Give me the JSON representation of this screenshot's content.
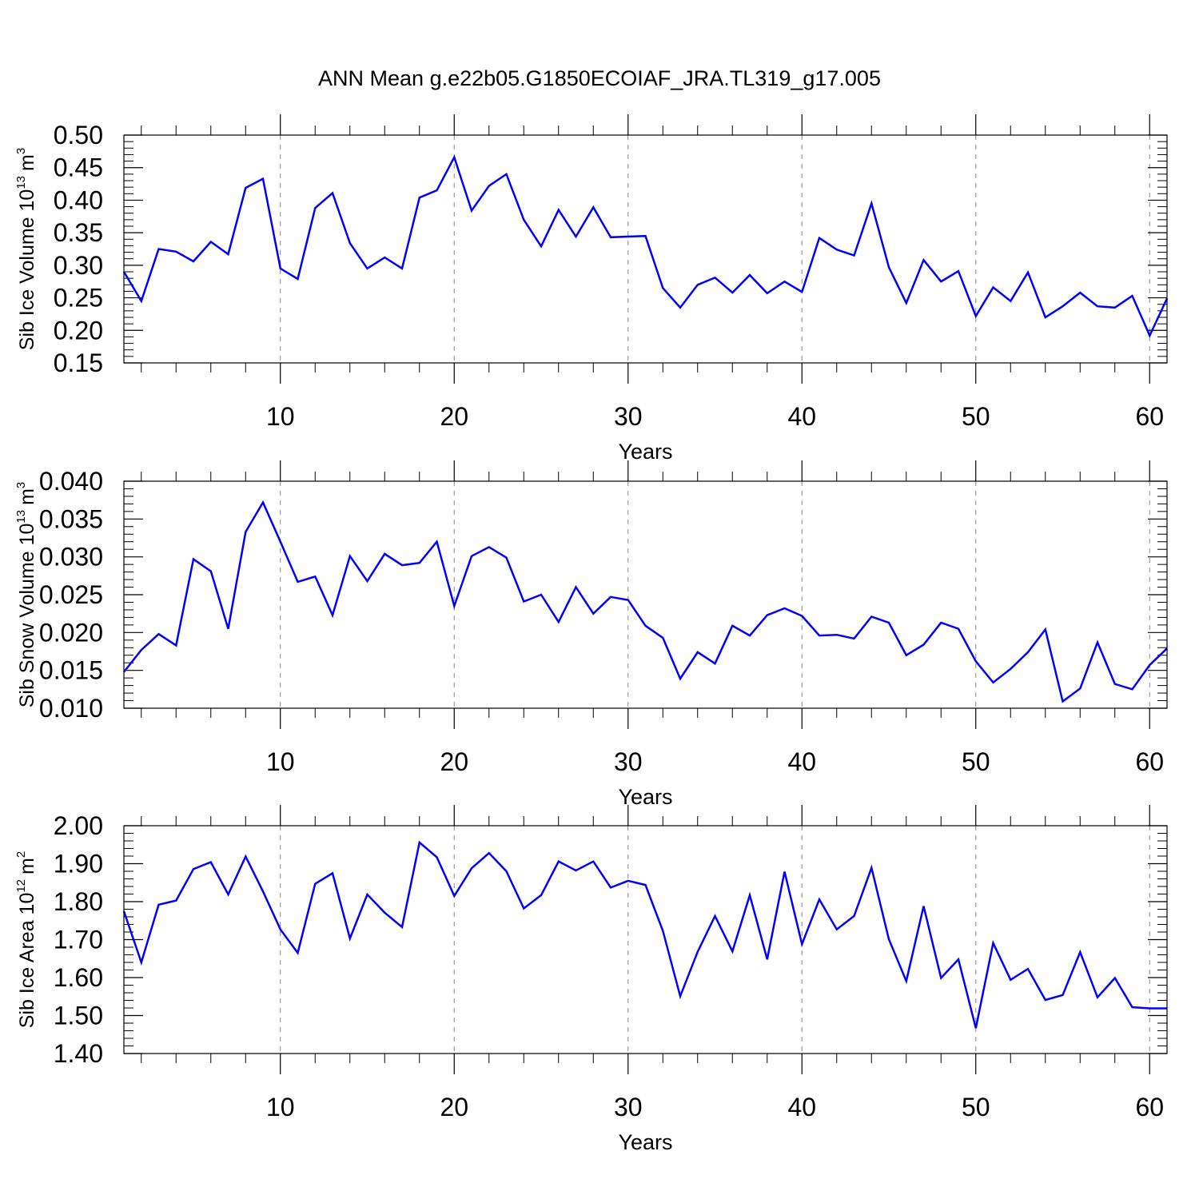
{
  "figure": {
    "title": "ANN Mean g.e22b05.G1850ECOIAF_JRA.TL319_g17.005",
    "line_color": "#0000ff",
    "axis_color": "#000000",
    "grid_color": "#888888"
  },
  "chart_data": [
    {
      "type": "line",
      "ylabel": "Sib Ice Volume 10",
      "ylabel_unit": "m",
      "ylabel_exp": "13",
      "ylabel_unit_exp": "3",
      "xlabel": "Years",
      "xlim": [
        1,
        61
      ],
      "ylim": [
        0.15,
        0.5
      ],
      "x_ticks": [
        "10",
        "20",
        "30",
        "40",
        "50",
        "60"
      ],
      "y_ticks": [
        "0.15",
        "0.20",
        "0.25",
        "0.30",
        "0.35",
        "0.40",
        "0.45",
        "0.50"
      ],
      "grid": "vertical dashed at major x ticks",
      "series": [
        {
          "x": [
            1,
            2,
            3,
            4,
            5,
            6,
            7,
            8,
            9,
            10,
            11,
            12,
            13,
            14,
            15,
            16,
            17,
            18,
            19,
            20,
            21,
            22,
            23,
            24,
            25,
            26,
            27,
            28,
            29,
            30,
            31,
            32,
            33,
            34,
            35,
            36,
            37,
            38,
            39,
            40,
            41,
            42,
            43,
            44,
            45,
            46,
            47,
            48,
            49,
            50,
            51,
            52,
            53,
            54,
            55,
            56,
            57,
            58,
            59,
            60,
            61
          ],
          "values": [
            0.29,
            0.245,
            0.325,
            0.321,
            0.306,
            0.336,
            0.317,
            0.419,
            0.433,
            0.295,
            0.279,
            0.388,
            0.411,
            0.334,
            0.295,
            0.312,
            0.295,
            0.404,
            0.415,
            0.466,
            0.384,
            0.422,
            0.44,
            0.37,
            0.329,
            0.385,
            0.344,
            0.389,
            0.343,
            0.344,
            0.345,
            0.265,
            0.235,
            0.27,
            0.281,
            0.258,
            0.285,
            0.257,
            0.275,
            0.259,
            0.342,
            0.324,
            0.315,
            0.395,
            0.297,
            0.242,
            0.308,
            0.275,
            0.291,
            0.222,
            0.266,
            0.245,
            0.289,
            0.22,
            0.237,
            0.258,
            0.237,
            0.235,
            0.253,
            0.192,
            0.249
          ]
        }
      ]
    },
    {
      "type": "line",
      "ylabel": "Sib Snow Volume 10",
      "ylabel_unit": "m",
      "ylabel_exp": "13",
      "ylabel_unit_exp": "3",
      "xlabel": "Years",
      "xlim": [
        1,
        61
      ],
      "ylim": [
        0.01,
        0.04
      ],
      "x_ticks": [
        "10",
        "20",
        "30",
        "40",
        "50",
        "60"
      ],
      "y_ticks": [
        "0.010",
        "0.015",
        "0.020",
        "0.025",
        "0.030",
        "0.035",
        "0.040"
      ],
      "grid": "vertical dashed at major x ticks",
      "series": [
        {
          "x": [
            1,
            2,
            3,
            4,
            5,
            6,
            7,
            8,
            9,
            10,
            11,
            12,
            13,
            14,
            15,
            16,
            17,
            18,
            19,
            20,
            21,
            22,
            23,
            24,
            25,
            26,
            27,
            28,
            29,
            30,
            31,
            32,
            33,
            34,
            35,
            36,
            37,
            38,
            39,
            40,
            41,
            42,
            43,
            44,
            45,
            46,
            47,
            48,
            49,
            50,
            51,
            52,
            53,
            54,
            55,
            56,
            57,
            58,
            59,
            60,
            61
          ],
          "values": [
            0.0148,
            0.0177,
            0.0198,
            0.0183,
            0.0297,
            0.0281,
            0.0205,
            0.0333,
            0.0372,
            0.032,
            0.0267,
            0.0274,
            0.0223,
            0.0301,
            0.0268,
            0.0304,
            0.0289,
            0.0292,
            0.032,
            0.0235,
            0.0301,
            0.0313,
            0.0299,
            0.0241,
            0.025,
            0.0214,
            0.026,
            0.0225,
            0.0247,
            0.0243,
            0.0209,
            0.0193,
            0.0139,
            0.0174,
            0.0159,
            0.0209,
            0.0196,
            0.0223,
            0.0232,
            0.0222,
            0.0196,
            0.0197,
            0.0192,
            0.0221,
            0.0213,
            0.017,
            0.0184,
            0.0213,
            0.0205,
            0.0162,
            0.0134,
            0.0152,
            0.0174,
            0.0204,
            0.0109,
            0.0126,
            0.0187,
            0.0132,
            0.0125,
            0.0157,
            0.0179
          ]
        }
      ]
    },
    {
      "type": "line",
      "ylabel": "Sib Ice Area 10",
      "ylabel_unit": "m",
      "ylabel_exp": "12",
      "ylabel_unit_exp": "2",
      "xlabel": "Years",
      "xlim": [
        1,
        61
      ],
      "ylim": [
        1.4,
        2.0
      ],
      "x_ticks": [
        "10",
        "20",
        "30",
        "40",
        "50",
        "60"
      ],
      "y_ticks": [
        "1.40",
        "1.50",
        "1.60",
        "1.70",
        "1.80",
        "1.90",
        "2.00"
      ],
      "grid": "vertical dashed at major x ticks",
      "series": [
        {
          "x": [
            1,
            2,
            3,
            4,
            5,
            6,
            7,
            8,
            9,
            10,
            11,
            12,
            13,
            14,
            15,
            16,
            17,
            18,
            19,
            20,
            21,
            22,
            23,
            24,
            25,
            26,
            27,
            28,
            29,
            30,
            31,
            32,
            33,
            34,
            35,
            36,
            37,
            38,
            39,
            40,
            41,
            42,
            43,
            44,
            45,
            46,
            47,
            48,
            49,
            50,
            51,
            52,
            53,
            54,
            55,
            56,
            57,
            58,
            59,
            60,
            61
          ],
          "values": [
            1.775,
            1.64,
            1.792,
            1.803,
            1.886,
            1.904,
            1.819,
            1.919,
            1.827,
            1.727,
            1.665,
            1.847,
            1.875,
            1.703,
            1.819,
            1.771,
            1.733,
            1.956,
            1.917,
            1.815,
            1.888,
            1.928,
            1.88,
            1.782,
            1.817,
            1.906,
            1.882,
            1.906,
            1.837,
            1.855,
            1.844,
            1.723,
            1.551,
            1.668,
            1.762,
            1.669,
            1.817,
            1.648,
            1.879,
            1.688,
            1.806,
            1.727,
            1.762,
            1.889,
            1.701,
            1.591,
            1.788,
            1.599,
            1.648,
            1.467,
            1.691,
            1.594,
            1.623,
            1.541,
            1.554,
            1.667,
            1.548,
            1.599,
            1.522,
            1.519,
            1.519
          ]
        }
      ]
    }
  ]
}
